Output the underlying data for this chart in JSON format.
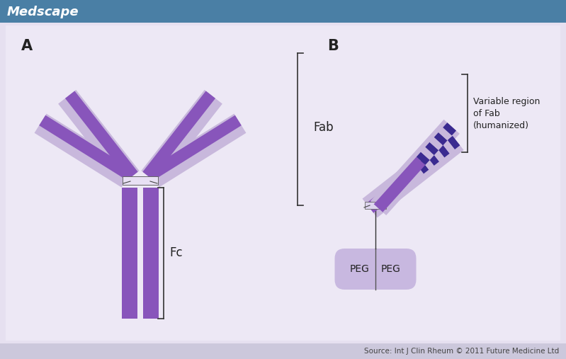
{
  "bg_color": "#e6e0f0",
  "panel_bg": "#ede8f5",
  "header_color": "#4a7fa5",
  "header_text": "Medscape",
  "header_text_color": "#ffffff",
  "footer_text": "Source: Int J Clin Rheum © 2011 Future Medicine Ltd",
  "footer_bg": "#ccc8dc",
  "footer_text_color": "#444444",
  "light_purple": "#c8b8dc",
  "dark_purple": "#8855bb",
  "deep_purple": "#3a2a90",
  "peg_color": "#c8b8e0",
  "label_color": "#222222",
  "panel_a_label": "A",
  "panel_b_label": "B",
  "fc_label": "Fc",
  "fab_label": "Fab",
  "var_label": "Variable region\nof Fab\n(humanized)",
  "peg_label": "PEG"
}
